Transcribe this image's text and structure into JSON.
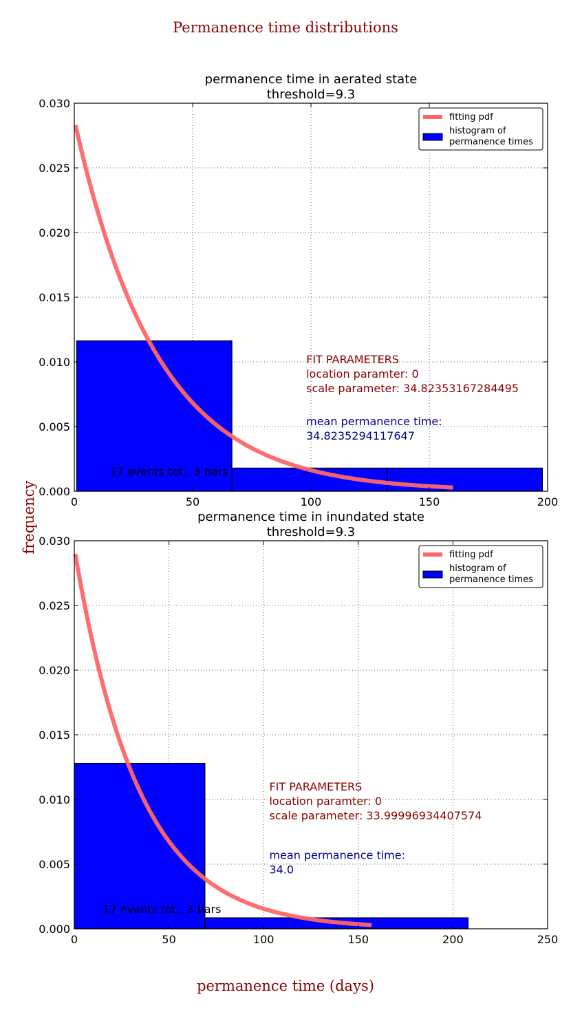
{
  "figure": {
    "suptitle": "Permanence time distributions",
    "ylabel": "frequency",
    "xlabel": "permanence time (days)"
  },
  "colors": {
    "title": "#8b0000",
    "pdf": "#ff6666",
    "hist": "#0000ff",
    "mean_text": "#00008b",
    "fit_text": "#8b0000"
  },
  "chart_data": [
    {
      "type": "bar",
      "title": "permanence time in aerated state",
      "subtitle": "threshold=9.3",
      "xlim": [
        0,
        200
      ],
      "ylim": [
        0,
        0.03
      ],
      "xticks": [
        0,
        50,
        100,
        150,
        200
      ],
      "yticks": [
        0.0,
        0.005,
        0.01,
        0.015,
        0.02,
        0.025,
        0.03
      ],
      "grid": true,
      "legend_position": "top-right",
      "legend": [
        "fitting pdf",
        "histogram of\npermanence times"
      ],
      "bins": [
        {
          "x0": 1,
          "x1": 66.6,
          "value": 0.01163
        },
        {
          "x0": 66.6,
          "x1": 132.2,
          "value": 0.00179
        },
        {
          "x0": 132.2,
          "x1": 197.8,
          "value": 0.00179
        }
      ],
      "pdf_curve": {
        "loc": 0,
        "scale": 34.82353167284495,
        "x_start": 0.5,
        "x_end": 160
      },
      "annotations": {
        "events": "17 events tot., 3 bars",
        "fit_header": "FIT PARAMETERS",
        "location": "location paramter: 0",
        "scale": "scale parameter: 34.82353167284495",
        "mean_label": "mean permanence time:",
        "mean_value": "34.8235294117647"
      }
    },
    {
      "type": "bar",
      "title": "permanence time in inundated state",
      "subtitle": "threshold=9.3",
      "xlim": [
        0,
        250
      ],
      "ylim": [
        0,
        0.03
      ],
      "xticks": [
        0,
        50,
        100,
        150,
        200,
        250
      ],
      "yticks": [
        0.0,
        0.005,
        0.01,
        0.015,
        0.02,
        0.025,
        0.03
      ],
      "grid": true,
      "legend_position": "top-right",
      "legend": [
        "fitting pdf",
        "histogram of\npermanence times"
      ],
      "bins": [
        {
          "x0": 0,
          "x1": 69,
          "value": 0.01279
        },
        {
          "x0": 69,
          "x1": 138.5,
          "value": 0.00085
        },
        {
          "x0": 138.5,
          "x1": 208,
          "value": 0.00085
        }
      ],
      "pdf_curve": {
        "loc": 0,
        "scale": 33.99996934407574,
        "x_start": 0.5,
        "x_end": 157
      },
      "annotations": {
        "events": "17 events tot., 3 bars",
        "fit_header": "FIT PARAMETERS",
        "location": "location paramter: 0",
        "scale": "scale parameter: 33.99996934407574",
        "mean_label": "mean permanence time:",
        "mean_value": "34.0"
      }
    }
  ]
}
